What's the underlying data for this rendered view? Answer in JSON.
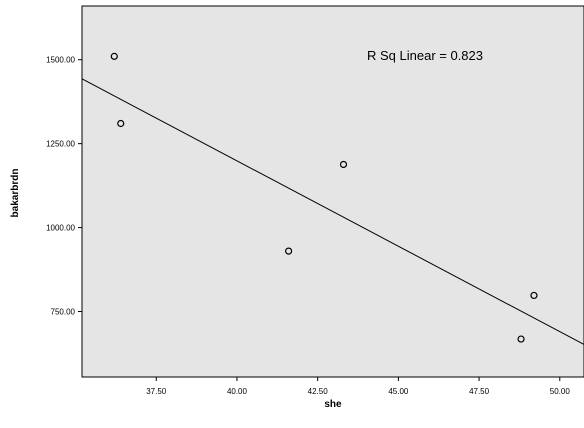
{
  "chart_data": {
    "type": "scatter",
    "title": "",
    "xlabel": "she",
    "ylabel": "bakarbrdn",
    "xlim": [
      35.2,
      50.75
    ],
    "ylim": [
      555,
      1660
    ],
    "x_ticks": [
      37.5,
      40.0,
      42.5,
      45.0,
      47.5,
      50.0
    ],
    "x_tick_labels": [
      "37.50",
      "40.00",
      "42.50",
      "45.00",
      "47.50",
      "50.00"
    ],
    "y_ticks": [
      750,
      1000,
      1250,
      1500
    ],
    "y_tick_labels": [
      "750.00",
      "1000.00",
      "1250.00",
      "1500.00"
    ],
    "points": [
      {
        "x": 36.2,
        "y": 1510
      },
      {
        "x": 36.4,
        "y": 1310
      },
      {
        "x": 41.6,
        "y": 930
      },
      {
        "x": 43.3,
        "y": 1188
      },
      {
        "x": 48.8,
        "y": 668
      },
      {
        "x": 49.2,
        "y": 798
      }
    ],
    "fit_line": {
      "x": [
        35.2,
        50.75
      ],
      "y": [
        1443,
        652
      ]
    },
    "annotation": "R Sq Linear = 0.823",
    "grid": false,
    "colors": {
      "plot_background": "#e5e5e5",
      "marker": "#000000",
      "line": "#000000"
    }
  }
}
